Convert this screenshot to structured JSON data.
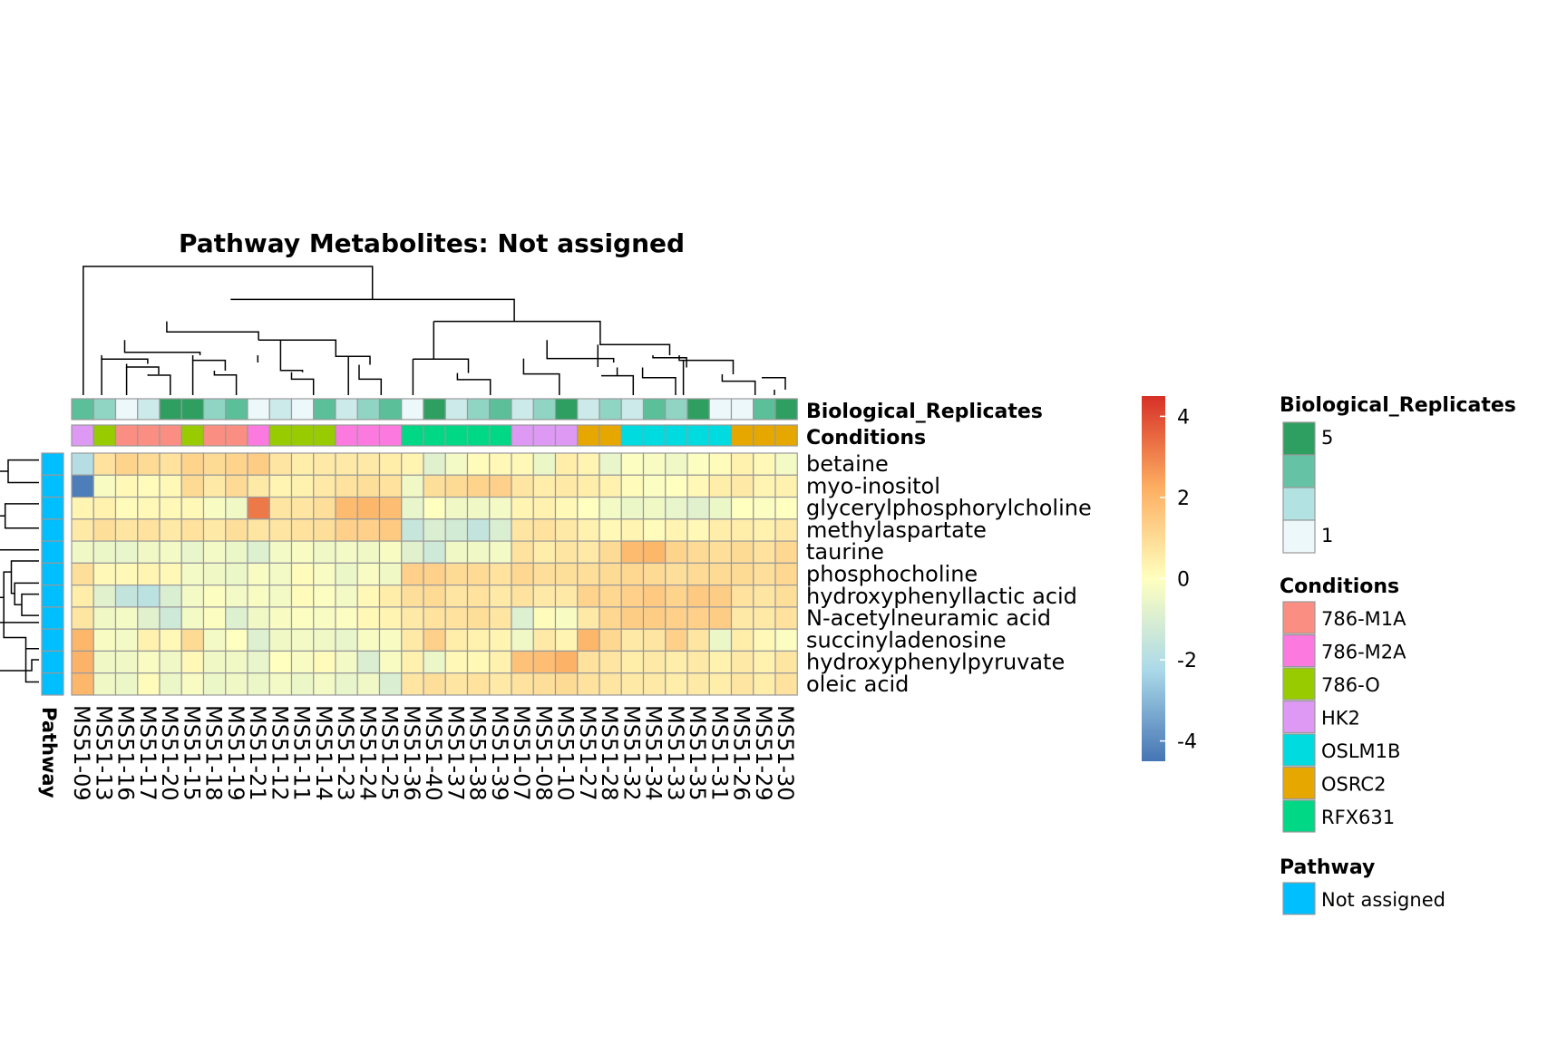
{
  "chart_data": {
    "type": "heatmap",
    "title": "Pathway  Metabolites:  Not assigned",
    "samples": [
      "MS51-09",
      "MS51-13",
      "MS51-16",
      "MS51-17",
      "MS51-20",
      "MS51-15",
      "MS51-18",
      "MS51-19",
      "MS51-21",
      "MS51-12",
      "MS51-11",
      "MS51-14",
      "MS51-23",
      "MS51-24",
      "MS51-25",
      "MS51-36",
      "MS51-40",
      "MS51-37",
      "MS51-38",
      "MS51-39",
      "MS51-07",
      "MS51-08",
      "MS51-10",
      "MS51-27",
      "MS51-28",
      "MS51-32",
      "MS51-34",
      "MS51-33",
      "MS51-35",
      "MS51-31",
      "MS51-26",
      "MS51-29",
      "MS51-30"
    ],
    "metabolites": [
      "betaine",
      "myo-inositol",
      "glycerylphosphorylcholine",
      "methylaspartate",
      "taurine",
      "phosphocholine",
      "hydroxyphenyllactic acid",
      "N-acetylneuramic acid",
      "succinyladenosine",
      "hydroxyphenylpyruvate",
      "oleic acid"
    ],
    "values": [
      [
        -2.0,
        0.8,
        1.2,
        1.0,
        0.8,
        1.2,
        1.0,
        1.2,
        1.4,
        0.7,
        0.5,
        0.6,
        0.6,
        0.6,
        0.5,
        0.3,
        -0.8,
        -0.3,
        0.1,
        0.2,
        0.2,
        -0.5,
        0.5,
        0.3,
        -0.6,
        -0.1,
        -0.2,
        -0.4,
        -0.1,
        0.1,
        0.4,
        0.2,
        -0.3
      ],
      [
        -4.3,
        -0.2,
        0.2,
        0.1,
        0.2,
        1.0,
        0.6,
        1.0,
        0.6,
        0.3,
        0.4,
        0.6,
        0.8,
        0.9,
        0.8,
        -0.4,
        0.9,
        1.0,
        1.2,
        1.3,
        0.7,
        0.5,
        0.6,
        0.5,
        0.4,
        0.1,
        -0.1,
        0.0,
        0.2,
        0.5,
        0.6,
        0.3,
        0.4
      ],
      [
        0.3,
        0.4,
        0.1,
        0.2,
        0.2,
        0.2,
        -0.2,
        -0.4,
        3.2,
        0.7,
        0.7,
        0.9,
        1.9,
        2.0,
        1.8,
        -0.6,
        0.0,
        -0.4,
        -0.4,
        -0.3,
        0.3,
        0.4,
        0.2,
        0.0,
        -0.3,
        -0.5,
        -0.4,
        -0.6,
        -0.8,
        -0.5,
        0.0,
        -0.1,
        0.0
      ],
      [
        0.6,
        0.9,
        0.7,
        0.8,
        0.6,
        0.8,
        0.6,
        0.9,
        0.7,
        0.7,
        0.8,
        0.9,
        1.3,
        1.3,
        1.5,
        -1.5,
        -1.0,
        -1.2,
        -1.6,
        -1.0,
        0.7,
        0.8,
        0.6,
        0.4,
        0.2,
        0.3,
        0.1,
        0.3,
        0.2,
        0.5,
        0.5,
        0.4,
        0.6
      ],
      [
        -0.4,
        -0.5,
        -0.6,
        -0.4,
        -0.3,
        -0.6,
        -0.3,
        -0.5,
        -0.9,
        -0.3,
        -0.2,
        -0.4,
        -0.3,
        -0.4,
        -0.2,
        -0.8,
        -1.3,
        -0.4,
        -0.4,
        -0.3,
        0.8,
        0.5,
        0.7,
        0.6,
        1.0,
        1.9,
        2.0,
        1.2,
        1.0,
        0.9,
        1.0,
        0.8,
        1.1
      ],
      [
        0.9,
        0.2,
        0.2,
        0.3,
        0.2,
        -0.3,
        -0.4,
        -0.5,
        -0.2,
        -0.3,
        0.1,
        -0.2,
        -0.5,
        -0.2,
        -0.4,
        1.3,
        1.3,
        1.0,
        1.0,
        0.8,
        1.1,
        0.9,
        0.9,
        0.9,
        1.0,
        1.1,
        1.0,
        0.9,
        1.0,
        1.0,
        1.0,
        0.9,
        1.1
      ],
      [
        0.5,
        -0.8,
        -1.6,
        -1.8,
        -1.0,
        -0.3,
        -0.1,
        -0.3,
        -0.2,
        -0.3,
        0.1,
        -0.1,
        -0.3,
        0.2,
        0.5,
        0.9,
        1.0,
        0.7,
        0.8,
        0.6,
        0.8,
        0.6,
        0.6,
        1.2,
        1.1,
        1.3,
        1.5,
        1.2,
        1.5,
        1.4,
        0.8,
        0.7,
        0.9
      ],
      [
        0.7,
        -0.4,
        -0.3,
        -0.8,
        -1.3,
        -0.3,
        -0.1,
        -0.9,
        -0.4,
        -0.2,
        -0.1,
        -0.2,
        -0.1,
        0.2,
        0.3,
        0.6,
        0.8,
        0.8,
        0.9,
        0.7,
        -0.9,
        0.1,
        -0.2,
        0.6,
        1.1,
        1.4,
        1.4,
        1.3,
        1.3,
        1.4,
        0.6,
        0.6,
        0.8
      ],
      [
        2.0,
        -0.2,
        -0.3,
        0.4,
        0.2,
        1.0,
        -0.3,
        0.0,
        -0.9,
        -0.4,
        -0.3,
        -0.4,
        -0.6,
        -0.2,
        -0.2,
        0.6,
        1.3,
        0.5,
        0.4,
        0.3,
        -0.4,
        0.6,
        0.3,
        2.0,
        1.1,
        0.6,
        0.7,
        1.3,
        0.7,
        -0.5,
        0.5,
        0.2,
        -0.1
      ],
      [
        2.1,
        -0.4,
        -0.4,
        -0.2,
        -0.4,
        0.2,
        -0.4,
        -0.4,
        -0.6,
        0.0,
        -0.2,
        0.1,
        -0.3,
        -1.0,
        -0.2,
        0.4,
        -0.5,
        0.2,
        0.2,
        0.4,
        1.7,
        1.8,
        2.1,
        0.8,
        0.7,
        0.5,
        0.6,
        0.5,
        0.6,
        0.4,
        0.6,
        0.4,
        0.7
      ],
      [
        2.0,
        -0.4,
        -0.5,
        0.1,
        -0.5,
        -0.2,
        -0.5,
        -0.4,
        -0.5,
        -0.3,
        -0.5,
        -0.3,
        -0.6,
        -0.4,
        -1.0,
        0.7,
        0.9,
        0.7,
        0.8,
        0.6,
        0.8,
        0.9,
        1.0,
        0.8,
        0.7,
        0.6,
        0.6,
        0.5,
        0.6,
        0.5,
        0.7,
        0.5,
        0.8
      ]
    ],
    "biological_replicates": [
      4,
      3,
      1,
      2,
      5,
      5,
      3,
      4,
      1,
      2,
      1,
      4,
      2,
      3,
      4,
      1,
      5,
      2,
      3,
      4,
      2,
      3,
      5,
      2,
      3,
      2,
      4,
      3,
      5,
      1,
      1,
      4,
      5
    ],
    "conditions": [
      "HK2",
      "786-O",
      "786-M1A",
      "786-M1A",
      "786-M1A",
      "786-O",
      "786-M1A",
      "786-M1A",
      "786-M2A",
      "786-O",
      "786-O",
      "786-O",
      "786-M2A",
      "786-M2A",
      "786-M2A",
      "RFX631",
      "RFX631",
      "RFX631",
      "RFX631",
      "RFX631",
      "HK2",
      "HK2",
      "HK2",
      "OSRC2",
      "OSRC2",
      "OSLM1B",
      "OSLM1B",
      "OSLM1B",
      "OSLM1B",
      "OSLM1B",
      "OSRC2",
      "OSRC2",
      "OSRC2"
    ],
    "pathway": [
      "Not assigned",
      "Not assigned",
      "Not assigned",
      "Not assigned",
      "Not assigned",
      "Not assigned",
      "Not assigned",
      "Not assigned",
      "Not assigned",
      "Not assigned",
      "Not assigned"
    ],
    "color_scale": {
      "ticks": [
        4,
        2,
        0,
        -2,
        -4
      ],
      "range": [
        -4.5,
        4.5
      ],
      "stops": [
        "#4575b4",
        "#abd9e9",
        "#ffffbf",
        "#fdae61",
        "#d73027"
      ]
    },
    "annotation_row_labels": [
      "Biological_Replicates",
      "Conditions"
    ],
    "annotation_col_label": "Pathway",
    "legends": {
      "replicates": {
        "title": "Biological_Replicates",
        "min_label": "1",
        "max_label": "5",
        "colors": [
          "#2e9f60",
          "#66c2a4",
          "#b2e2e2",
          "#edf8fb"
        ]
      },
      "conditions": {
        "title": "Conditions",
        "items": [
          {
            "label": "786-M1A",
            "color": "#fa8e82"
          },
          {
            "label": "786-M2A",
            "color": "#fc7ae0"
          },
          {
            "label": "786-O",
            "color": "#99cc00"
          },
          {
            "label": "HK2",
            "color": "#dd99f4"
          },
          {
            "label": "OSLM1B",
            "color": "#00dbe0"
          },
          {
            "label": "OSRC2",
            "color": "#e6a800"
          },
          {
            "label": "RFX631",
            "color": "#00d885"
          }
        ]
      },
      "pathway": {
        "title": "Pathway",
        "items": [
          {
            "label": "Not assigned",
            "color": "#00bfff"
          }
        ]
      }
    },
    "replicate_palette": {
      "1": "#edf8fb",
      "2": "#cdeaeb",
      "3": "#90d4c4",
      "4": "#5bbf99",
      "5": "#2e9f60"
    }
  }
}
